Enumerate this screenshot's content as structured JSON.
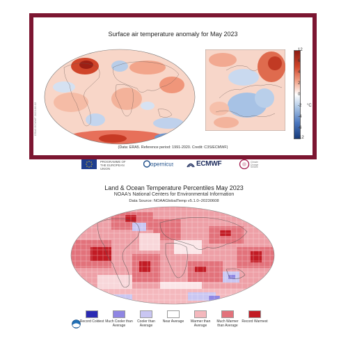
{
  "copernicus_panel": {
    "title": "Surface air temperature anomaly for May 2023",
    "source": "(Data: ERA5. Reference period: 1991-2020. Credit: C3S/ECMWF)",
    "side_text": "ERA5 ECMWF 2023-06-02",
    "colorbar": {
      "unit": "°C",
      "ticks": [
        "12",
        "6",
        "4",
        "2",
        "0",
        "-2",
        "-4",
        "-6",
        "-12"
      ],
      "colors": [
        "#8c1c13",
        "#c8391f",
        "#e8744a",
        "#f6b49b",
        "#fbe3d8",
        "#ffffff",
        "#dbe6f4",
        "#a9c4e4",
        "#6b96cf",
        "#2f5ea9",
        "#163a7a"
      ]
    }
  },
  "logos": {
    "eu_text": "PROGRAMME OF THE EUROPEAN UNION",
    "copernicus": "opernicus",
    "ecmwf": "ECMWF",
    "c3s": "Climate Change Service"
  },
  "noaa_panel": {
    "title": "Land & Ocean Temperature Percentiles May 2023",
    "subtitle": "NOAA's National Centers for Environmental Information",
    "source": "Data Source: NOAAGlobalTemp v5.1.0–20230608",
    "legend": [
      {
        "label": "Record Coldest",
        "color": "#2a2ab3"
      },
      {
        "label": "Much Cooler than Average",
        "color": "#8f86e3"
      },
      {
        "label": "Cooler than Average",
        "color": "#c9c6f2"
      },
      {
        "label": "Near Average",
        "color": "#ffffff"
      },
      {
        "label": "Warmer than Average",
        "color": "#f4b8bd"
      },
      {
        "label": "Much Warmer than Average",
        "color": "#e2727b"
      },
      {
        "label": "Record Warmest",
        "color": "#c21b24"
      }
    ]
  }
}
